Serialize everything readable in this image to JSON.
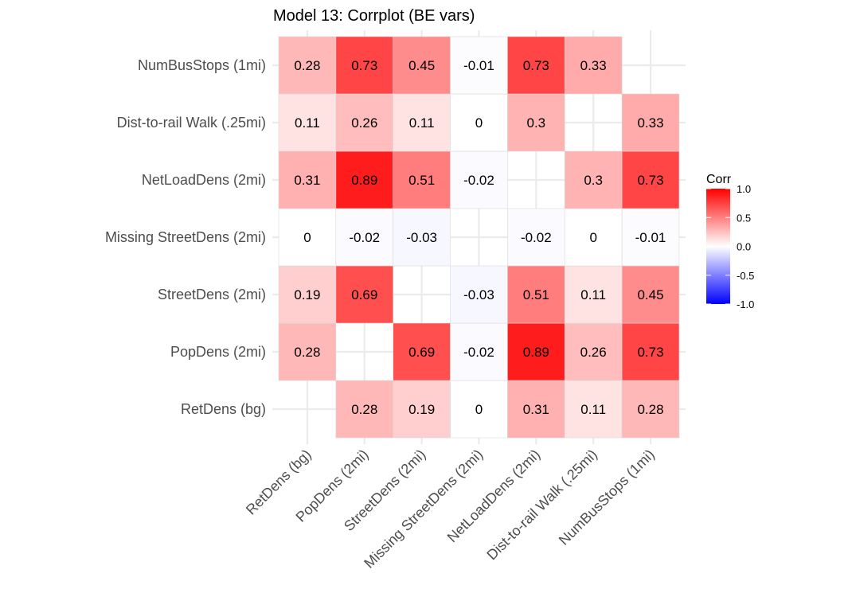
{
  "chart_data": {
    "type": "heatmap",
    "title": "Model 13: Corrplot (BE vars)",
    "xlabel": "",
    "ylabel": "",
    "variables": [
      "RetDens (bg)",
      "PopDens (2mi)",
      "StreetDens (2mi)",
      "Missing StreetDens (2mi)",
      "NetLoadDens (2mi)",
      "Dist-to-rail Walk (.25mi)",
      "NumBusStops (1mi)"
    ],
    "matrix": [
      [
        null,
        0.28,
        0.19,
        0,
        0.31,
        0.11,
        0.28
      ],
      [
        0.28,
        null,
        0.69,
        -0.02,
        0.89,
        0.26,
        0.73
      ],
      [
        0.19,
        0.69,
        null,
        -0.03,
        0.51,
        0.11,
        0.45
      ],
      [
        0,
        -0.02,
        -0.03,
        null,
        -0.02,
        0,
        -0.01
      ],
      [
        0.31,
        0.89,
        0.51,
        -0.02,
        null,
        0.3,
        0.73
      ],
      [
        0.11,
        0.26,
        0.11,
        0,
        0.3,
        null,
        0.33
      ],
      [
        0.28,
        0.73,
        0.45,
        -0.01,
        0.73,
        0.33,
        null
      ]
    ],
    "legend": {
      "title": "Corr",
      "placement": "right",
      "ticks": [
        1.0,
        0.5,
        0.0,
        -0.5,
        -1.0
      ],
      "tick_labels": [
        "1.0",
        "0.5",
        "0.0",
        "-0.5",
        "-1.0"
      ],
      "color_low": "#0000ff",
      "color_mid": "#ffffff",
      "color_high": "#ff0000"
    },
    "grid": true
  }
}
